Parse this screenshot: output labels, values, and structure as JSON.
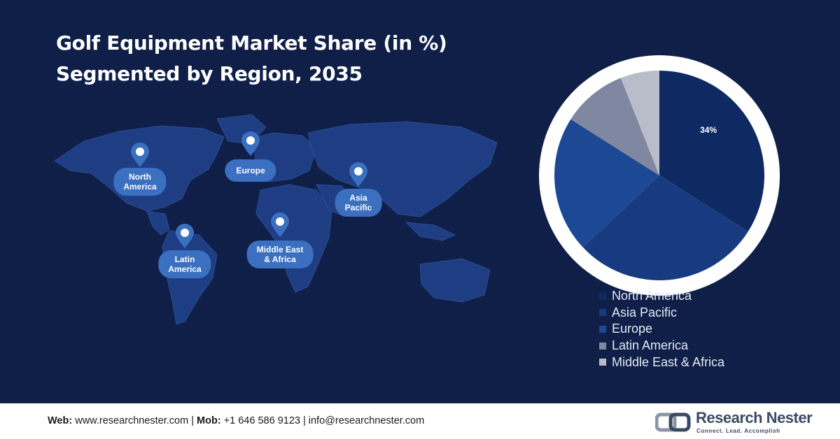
{
  "title": {
    "line1": "Golf Equipment Market Share (in %)",
    "line2": "Segmented by Region, 2035"
  },
  "map_labels": {
    "north_america": [
      "North",
      "America"
    ],
    "europe": [
      "Europe"
    ],
    "asia_pacific": [
      "Asia",
      "Pacific"
    ],
    "latin_america": [
      "Latin",
      "America"
    ],
    "mea": [
      "Middle East",
      "& Africa"
    ]
  },
  "chart_data": {
    "type": "pie",
    "title": "Golf Equipment Market Share (in %) Segmented by Region, 2035",
    "legend_position": "bottom-right",
    "slices": [
      {
        "label": "North America",
        "value": 34,
        "color": "#0f2a63",
        "data_label": "34%"
      },
      {
        "label": "Asia Pacific",
        "value": 29,
        "color": "#183a80",
        "data_label": ""
      },
      {
        "label": "Europe",
        "value": 21,
        "color": "#1d4893",
        "data_label": ""
      },
      {
        "label": "Latin America",
        "value": 10,
        "color": "#7f88a0",
        "data_label": ""
      },
      {
        "label": "Middle East & Africa",
        "value": 6,
        "color": "#b9bdc9",
        "data_label": ""
      }
    ]
  },
  "footer": {
    "web_label": "Web:",
    "web_value": " www.researchnester.com | ",
    "mob_label": "Mob:",
    "mob_value": " +1 646 586 9123 | info@researchnester.com"
  },
  "logo": {
    "name": "Research Nester",
    "tagline": "Connect. Lead. Accomplish"
  },
  "colors": {
    "background": "#0f1f48",
    "map": "#1f3d82",
    "label_bubble": "#3b6fc0"
  }
}
